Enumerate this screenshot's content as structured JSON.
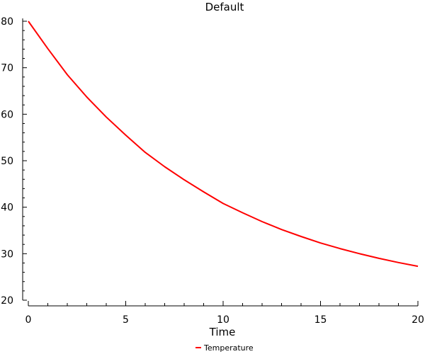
{
  "chart_data": {
    "type": "line",
    "title": "Default",
    "xlabel": "Time",
    "ylabel": "",
    "xlim": [
      0,
      20
    ],
    "ylim": [
      20,
      80
    ],
    "xticks": [
      0,
      5,
      10,
      15,
      20
    ],
    "yticks": [
      20,
      30,
      40,
      50,
      60,
      70,
      80
    ],
    "grid": false,
    "legend_position": "bottom-center",
    "series": [
      {
        "name": "Temperature",
        "color": "#ff0000",
        "x": [
          0,
          1,
          2,
          3,
          4,
          5,
          6,
          7,
          8,
          9,
          10,
          11,
          12,
          13,
          14,
          15,
          16,
          17,
          18,
          19,
          20
        ],
        "y": [
          80,
          74.1,
          68.5,
          63.7,
          59.4,
          55.5,
          51.8,
          48.7,
          45.9,
          43.3,
          40.8,
          38.8,
          36.9,
          35.2,
          33.7,
          32.3,
          31.1,
          30.0,
          29.0,
          28.1,
          27.3
        ]
      }
    ]
  }
}
